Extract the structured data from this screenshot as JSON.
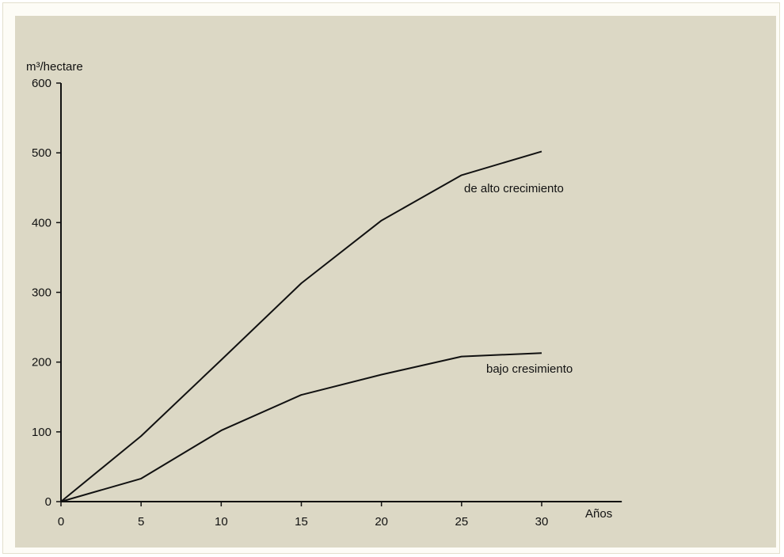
{
  "chart_data": {
    "type": "line",
    "title": "",
    "xlabel": "Años",
    "ylabel": "m³/hectare",
    "x": [
      0,
      5,
      10,
      15,
      20,
      25,
      30
    ],
    "xlim": [
      0,
      35
    ],
    "ylim": [
      0,
      600
    ],
    "xticks": [
      "0",
      "5",
      "10",
      "15",
      "20",
      "25",
      "30"
    ],
    "yticks": [
      "0",
      "100",
      "200",
      "300",
      "400",
      "500",
      "600"
    ],
    "grid": false,
    "legend": "inline labels at line ends",
    "series": [
      {
        "name": "de alto crecimiento",
        "values": [
          0,
          94,
          203,
          313,
          403,
          468,
          502
        ]
      },
      {
        "name": "bajo cresimiento",
        "values": [
          0,
          33,
          102,
          153,
          182,
          208,
          213
        ]
      }
    ],
    "colors": {
      "background": "#dcd8c5",
      "line": "#111111"
    }
  }
}
